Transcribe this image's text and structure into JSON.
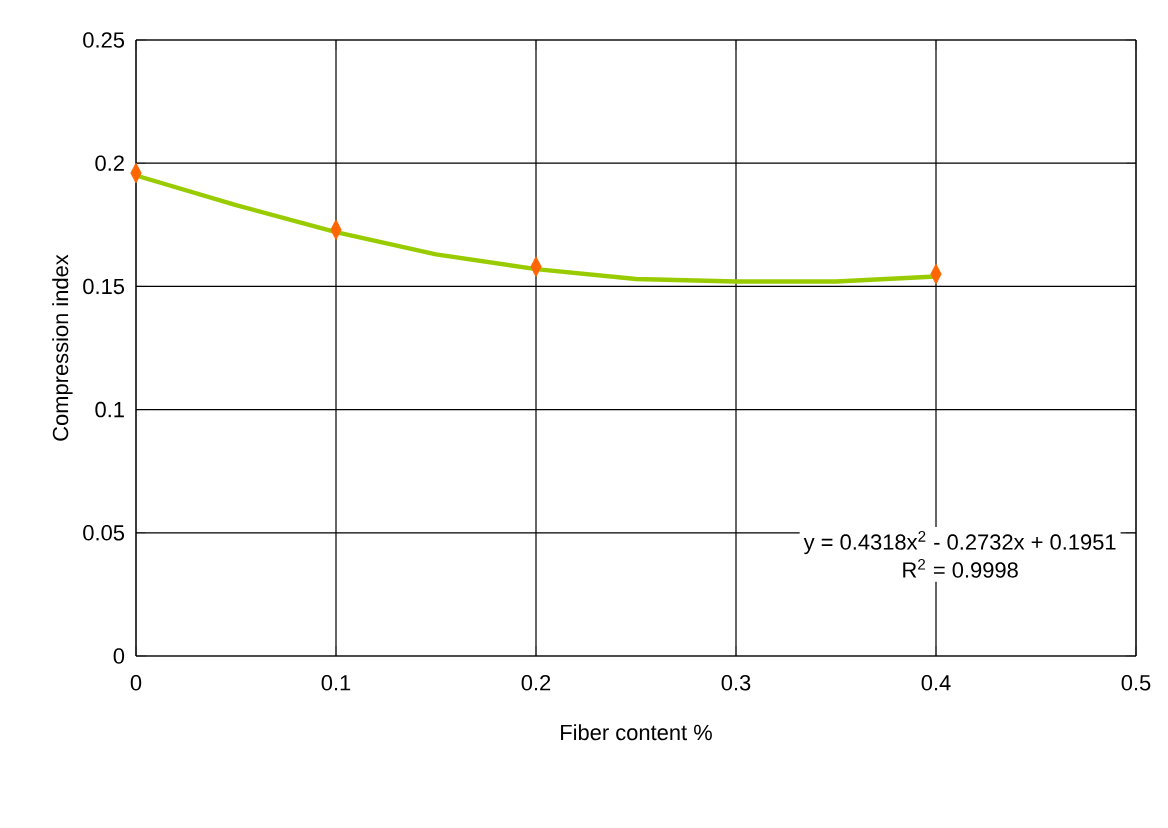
{
  "chart_data": {
    "type": "scatter",
    "xlabel": "Fiber content %",
    "ylabel": "Compression index",
    "xlim": [
      0,
      0.5
    ],
    "ylim": [
      0,
      0.25
    ],
    "xticks": [
      0,
      0.1,
      0.2,
      0.3,
      0.4,
      0.5
    ],
    "yticks": [
      0,
      0.05,
      0.1,
      0.15,
      0.2,
      0.25
    ],
    "grid": true,
    "series": [
      {
        "type": "line",
        "color": "#99cc00",
        "marker": "none",
        "x": [
          0,
          0.05,
          0.1,
          0.15,
          0.2,
          0.25,
          0.3,
          0.35,
          0.4
        ],
        "values": [
          0.195,
          0.183,
          0.172,
          0.163,
          0.157,
          0.153,
          0.152,
          0.152,
          0.154
        ]
      },
      {
        "color": "#ff6600",
        "marker": "diamond",
        "x": [
          0,
          0.1,
          0.2,
          0.4
        ],
        "values": [
          0.196,
          0.173,
          0.158,
          0.155
        ]
      }
    ],
    "annotations": [
      "y = 0.4318x$^{2}$ - 0.2732x + 0.1951",
      "R$^{2}$ = 0.9998"
    ]
  }
}
